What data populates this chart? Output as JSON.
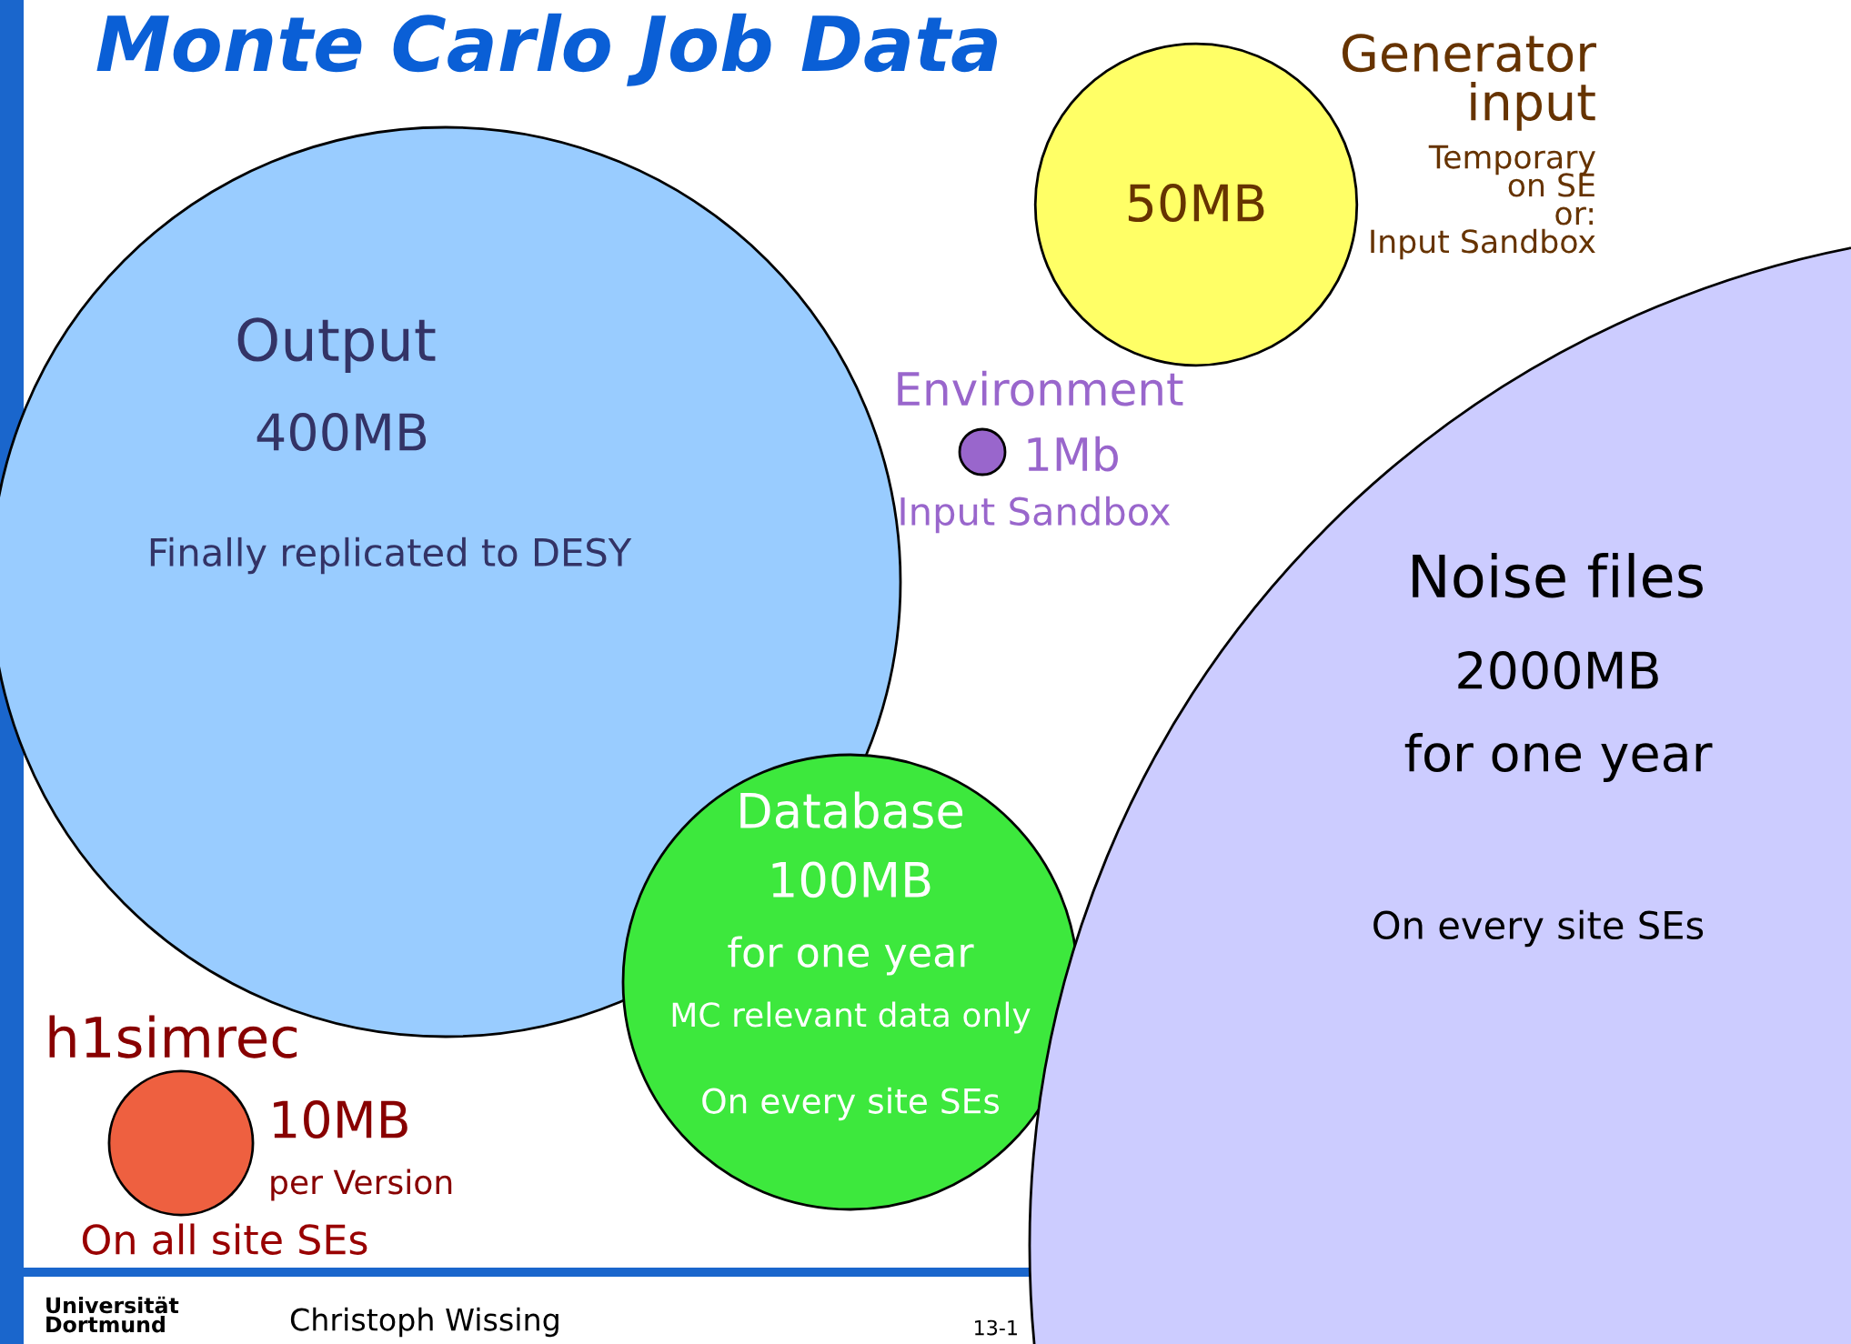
{
  "chart_data": {
    "type": "other",
    "title": "Monte Carlo Job Data",
    "categories": [
      "Output",
      "Generator\ninput",
      "Environment",
      "Database",
      "Noise files",
      "h1simrec"
    ],
    "values": [
      400,
      50,
      1,
      100,
      2000,
      10
    ],
    "value_labels": [
      "400MB",
      "50MB",
      "1Mb",
      "100MB",
      "2000MB",
      "10MB"
    ],
    "colors": [
      "#99ccff",
      "#ffff66",
      "#9966cc",
      "#3de83d",
      "#ccccff",
      "#ee6040"
    ],
    "annotations": [
      "Finally replicated to DESY",
      "Temporary\non SE\nor:\nInput Sandbox",
      "Input Sandbox",
      "for one year",
      "MC relevant data only",
      "On every site SEs",
      "for one year",
      "On every site SEs",
      "per Version",
      "On all site SEs",
      "Universität\nDortmund",
      "Christoph Wissing",
      "13-1"
    ]
  }
}
